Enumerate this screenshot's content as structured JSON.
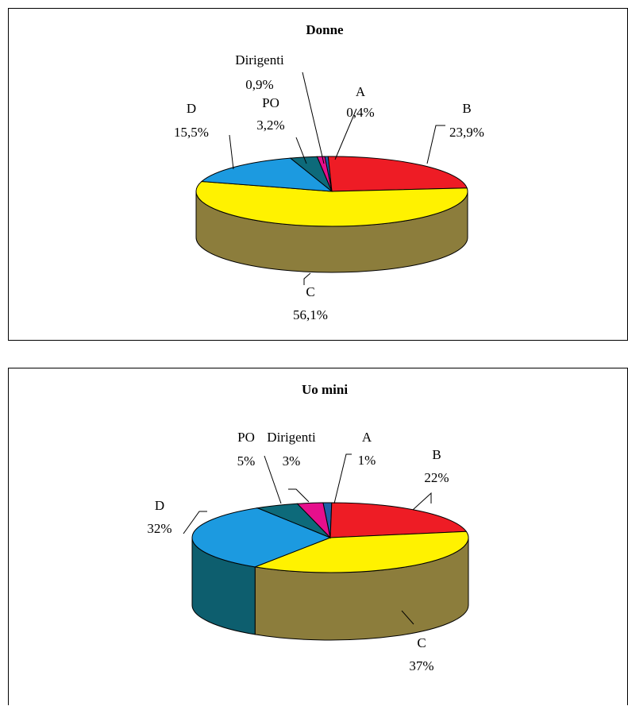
{
  "chart_data": [
    {
      "type": "pie",
      "title": "Donne",
      "slices": [
        {
          "label": "A",
          "value_label": "0,4%",
          "value": 0.4,
          "color": "#1f5fa8"
        },
        {
          "label": "B",
          "value_label": "23,9%",
          "value": 23.9,
          "color": "#ee1c25"
        },
        {
          "label": "C",
          "value_label": "56,1%",
          "value": 56.1,
          "color": "#fff200"
        },
        {
          "label": "D",
          "value_label": "15,5%",
          "value": 15.5,
          "color": "#1c9ae0"
        },
        {
          "label": "PO",
          "value_label": "3,2%",
          "value": 3.2,
          "color": "#0d6a7a"
        },
        {
          "label": "Dirigenti",
          "value_label": "0,9%",
          "value": 0.9,
          "color": "#e60f8c"
        }
      ]
    },
    {
      "type": "pie",
      "title": "Uo mini",
      "slices": [
        {
          "label": "A",
          "value_label": "1%",
          "value": 1,
          "color": "#1f5fa8"
        },
        {
          "label": "B",
          "value_label": "22%",
          "value": 22,
          "color": "#ee1c25"
        },
        {
          "label": "C",
          "value_label": "37%",
          "value": 37,
          "color": "#fff200"
        },
        {
          "label": "D",
          "value_label": "32%",
          "value": 32,
          "color": "#1c9ae0"
        },
        {
          "label": "PO",
          "value_label": "5%",
          "value": 5,
          "color": "#0d6a7a"
        },
        {
          "label": "Dirigenti",
          "value_label": "3%",
          "value": 3,
          "color": "#e60f8c"
        }
      ]
    }
  ],
  "side_colors": {
    "C": "#8c7d3c",
    "D": "#0d5e6e",
    "B": "#9a1a1a"
  }
}
